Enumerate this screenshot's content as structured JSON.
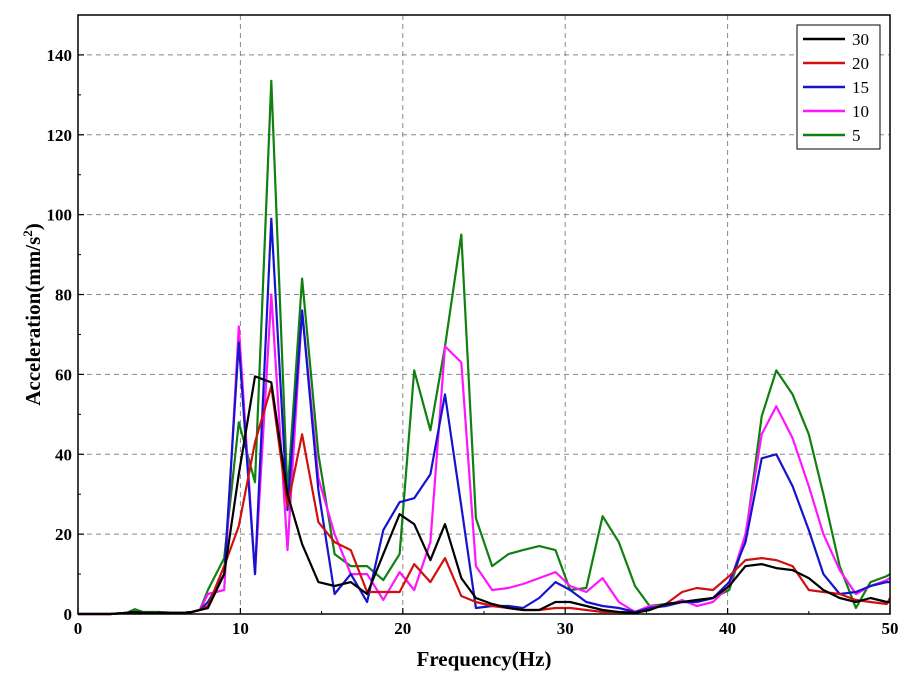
{
  "chart_data": {
    "type": "line",
    "title": "",
    "xlabel": "Frequency(Hz)",
    "ylabel_main": "Acceleration(mm/s",
    "ylabel_sup": "2",
    "ylabel_close": ")",
    "xlim": [
      0,
      50
    ],
    "ylim": [
      0,
      150
    ],
    "xticks": [
      0,
      10,
      20,
      30,
      40,
      50
    ],
    "yticks": [
      0,
      20,
      40,
      60,
      80,
      100,
      120,
      140
    ],
    "grid": true,
    "legend_position": "top-right",
    "x": [
      0,
      1,
      2,
      3,
      3.5,
      4,
      5,
      6,
      6.5,
      7,
      7.5,
      8,
      9,
      9.9,
      10.9,
      11.9,
      12.9,
      13.8,
      14.8,
      15.8,
      16.8,
      17.8,
      18.8,
      19.8,
      20.7,
      21.7,
      22.6,
      23.6,
      24.5,
      25.5,
      26.5,
      27.4,
      28.4,
      29.4,
      30.3,
      31.3,
      32.3,
      33.3,
      34.3,
      35.2,
      36.2,
      37.2,
      38.1,
      39.1,
      40.1,
      41.1,
      42.1,
      43,
      44,
      45,
      45.9,
      46.9,
      47.9,
      48.8,
      49.8,
      50
    ],
    "series": [
      {
        "name": "30",
        "color": "#000000",
        "values": [
          0,
          0,
          0,
          0.3,
          0.5,
          0.3,
          0.3,
          0.3,
          0.3,
          0.5,
          1,
          1.5,
          10,
          35,
          59.5,
          58,
          30,
          17.5,
          8,
          7,
          8,
          5,
          15,
          25,
          22.5,
          13.5,
          22.5,
          9,
          4,
          2.5,
          1.5,
          1,
          1,
          3,
          3,
          2,
          1,
          0.5,
          0.3,
          1,
          2.5,
          3,
          3.5,
          4,
          7,
          12,
          12.5,
          11.5,
          11,
          9,
          6,
          4,
          3,
          4,
          3,
          3
        ]
      },
      {
        "name": "20",
        "color": "#d01010",
        "values": [
          0,
          0,
          0,
          0.3,
          0.5,
          0.3,
          0.3,
          0.3,
          0.3,
          0.5,
          1,
          2,
          12,
          22,
          43,
          57,
          27,
          45,
          23,
          18,
          16,
          5.5,
          5.5,
          5.5,
          12.5,
          8,
          14,
          4.5,
          3,
          2,
          1.5,
          1,
          1,
          1.5,
          1.5,
          1,
          0.5,
          0.5,
          0.3,
          1,
          2.5,
          5.5,
          6.5,
          6,
          9.5,
          13.5,
          14,
          13.5,
          12,
          6,
          5.5,
          5,
          3.5,
          3,
          2.5,
          4
        ]
      },
      {
        "name": "15",
        "color": "#1414cc",
        "values": [
          0,
          0,
          0,
          0.3,
          0.5,
          0.3,
          0.3,
          0.3,
          0.3,
          0.5,
          1,
          3,
          10,
          68,
          10,
          99,
          26,
          76,
          31,
          5,
          10,
          3,
          21,
          28,
          29,
          35,
          55,
          27,
          1.5,
          2,
          2,
          1.5,
          4,
          8,
          6,
          3,
          2,
          1.5,
          0.5,
          1.5,
          2,
          3,
          3,
          4,
          8,
          18,
          39,
          40,
          32,
          21,
          10,
          5,
          5.5,
          7,
          8,
          8
        ]
      },
      {
        "name": "10",
        "color": "#ff14ff",
        "values": [
          0,
          0,
          0,
          0.3,
          0.5,
          0.3,
          0.3,
          0.3,
          0.3,
          0.5,
          1,
          5,
          6,
          72,
          10,
          80,
          16,
          76,
          34,
          20,
          10,
          10,
          3.5,
          10.5,
          6,
          18,
          67,
          63,
          12,
          6,
          6.5,
          7.5,
          9,
          10.5,
          7,
          5.5,
          9,
          3,
          0.5,
          2,
          2,
          3.5,
          2,
          3,
          7,
          20,
          45,
          52,
          44,
          32,
          20,
          11,
          5,
          7,
          8.5,
          9
        ]
      },
      {
        "name": "5",
        "color": "#108010",
        "values": [
          0,
          0,
          0,
          0.3,
          1.2,
          0.5,
          0.5,
          0.3,
          0.3,
          0.5,
          1,
          6,
          14,
          48,
          33,
          133.5,
          30,
          84,
          40,
          15,
          12,
          12,
          8.5,
          15,
          61,
          46,
          67,
          95,
          24,
          12,
          15,
          16,
          17,
          16,
          6,
          6.5,
          24.5,
          18,
          7,
          2,
          2.5,
          3,
          3,
          4,
          6,
          19,
          49.5,
          61,
          55,
          45,
          30,
          12,
          1.5,
          8,
          9.5,
          10
        ]
      }
    ]
  }
}
